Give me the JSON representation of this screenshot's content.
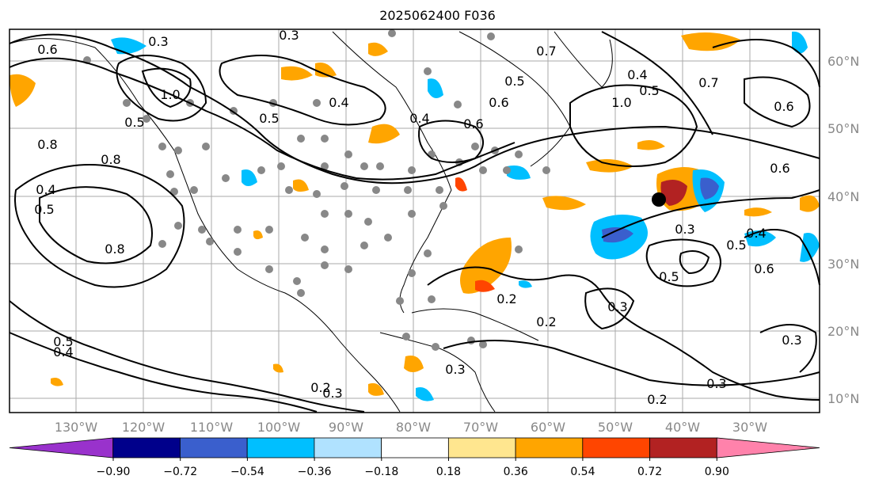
{
  "title": "2025062400 F036",
  "axes": {
    "lon_labels": [
      "130°W",
      "120°W",
      "110°W",
      "100°W",
      "90°W",
      "80°W",
      "70°W",
      "60°W",
      "50°W",
      "40°W",
      "30°W"
    ],
    "lat_labels": [
      "60°N",
      "50°N",
      "40°N",
      "30°N",
      "20°N",
      "10°N"
    ]
  },
  "colorbar": {
    "ticks": [
      "−0.90",
      "−0.72",
      "−0.54",
      "−0.36",
      "−0.18",
      "0.18",
      "0.36",
      "0.54",
      "0.72",
      "0.90"
    ],
    "colors": [
      "#9932cc",
      "#00008b",
      "#3a5fcd",
      "#00bfff",
      "#b0e2ff",
      "#ffffff",
      "#ffe68f",
      "#ffa500",
      "#ff4500",
      "#b22222",
      "#ff82ab"
    ]
  },
  "contour_labels": [
    "0.3",
    "0.3",
    "0.6",
    "0.7",
    "0.5",
    "0.6",
    "0.4",
    "0.5",
    "0.5",
    "0.8",
    "0.8",
    "0.4",
    "0.5",
    "1.0",
    "0.6",
    "0.4",
    "0.8",
    "0.2",
    "0.3",
    "0.2",
    "0.3",
    "0.3",
    "0.2",
    "0.3",
    "0.2",
    "0.3",
    "0.4",
    "0.5",
    "0.6",
    "0.4",
    "0.5",
    "0.6",
    "0.7",
    "0.6",
    "0.5",
    "1.0",
    "0.5",
    "0.4",
    "0.3"
  ]
}
